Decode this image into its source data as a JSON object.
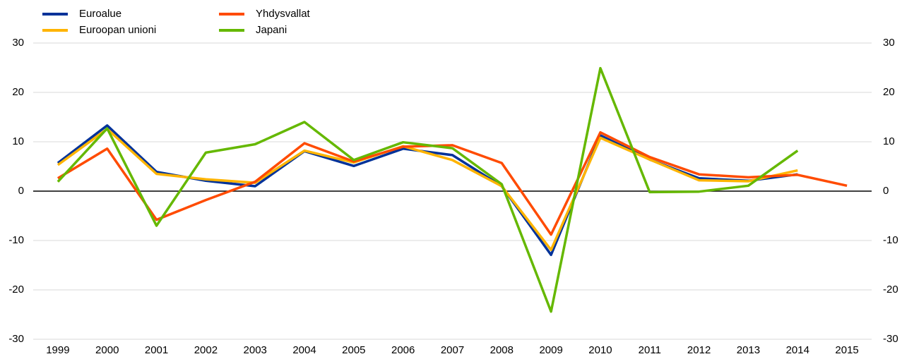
{
  "chart_data": {
    "type": "line",
    "categories": [
      "1999",
      "2000",
      "2001",
      "2002",
      "2003",
      "2004",
      "2005",
      "2006",
      "2007",
      "2008",
      "2009",
      "2010",
      "2011",
      "2012",
      "2013",
      "2014",
      "2015"
    ],
    "series": [
      {
        "name": "Euroalue",
        "color": "#003299",
        "values": [
          5.7,
          13.3,
          3.9,
          2.1,
          1.0,
          8.1,
          5.1,
          8.6,
          7.3,
          1.0,
          -12.9,
          11.3,
          6.4,
          2.6,
          2.1,
          3.4,
          null
        ]
      },
      {
        "name": "Euroopan unioni",
        "color": "#ffb400",
        "values": [
          5.3,
          12.6,
          3.5,
          2.4,
          1.7,
          8.2,
          5.8,
          9.1,
          6.3,
          1.0,
          -11.9,
          10.8,
          6.4,
          2.2,
          2.0,
          4.2,
          null
        ]
      },
      {
        "name": "Yhdysvallat",
        "color": "#ff4b00",
        "values": [
          2.6,
          8.6,
          -5.8,
          -1.8,
          1.9,
          9.7,
          6.0,
          9.0,
          9.3,
          5.7,
          -8.8,
          11.9,
          6.9,
          3.4,
          2.8,
          3.3,
          1.1
        ]
      },
      {
        "name": "Japani",
        "color": "#65b800",
        "values": [
          1.9,
          12.7,
          -7.0,
          7.8,
          9.5,
          14.0,
          6.3,
          9.9,
          8.7,
          1.4,
          -24.4,
          24.9,
          -0.2,
          -0.1,
          1.1,
          8.2,
          null
        ]
      }
    ],
    "ylim": [
      -30,
      30
    ],
    "yticks": [
      -30,
      -20,
      -10,
      0,
      10,
      20,
      30
    ],
    "y2lim": [
      -30,
      30
    ],
    "y2ticks": [
      -30,
      -20,
      -10,
      0,
      10,
      20,
      30
    ],
    "grid": true,
    "legend": "top-left"
  }
}
